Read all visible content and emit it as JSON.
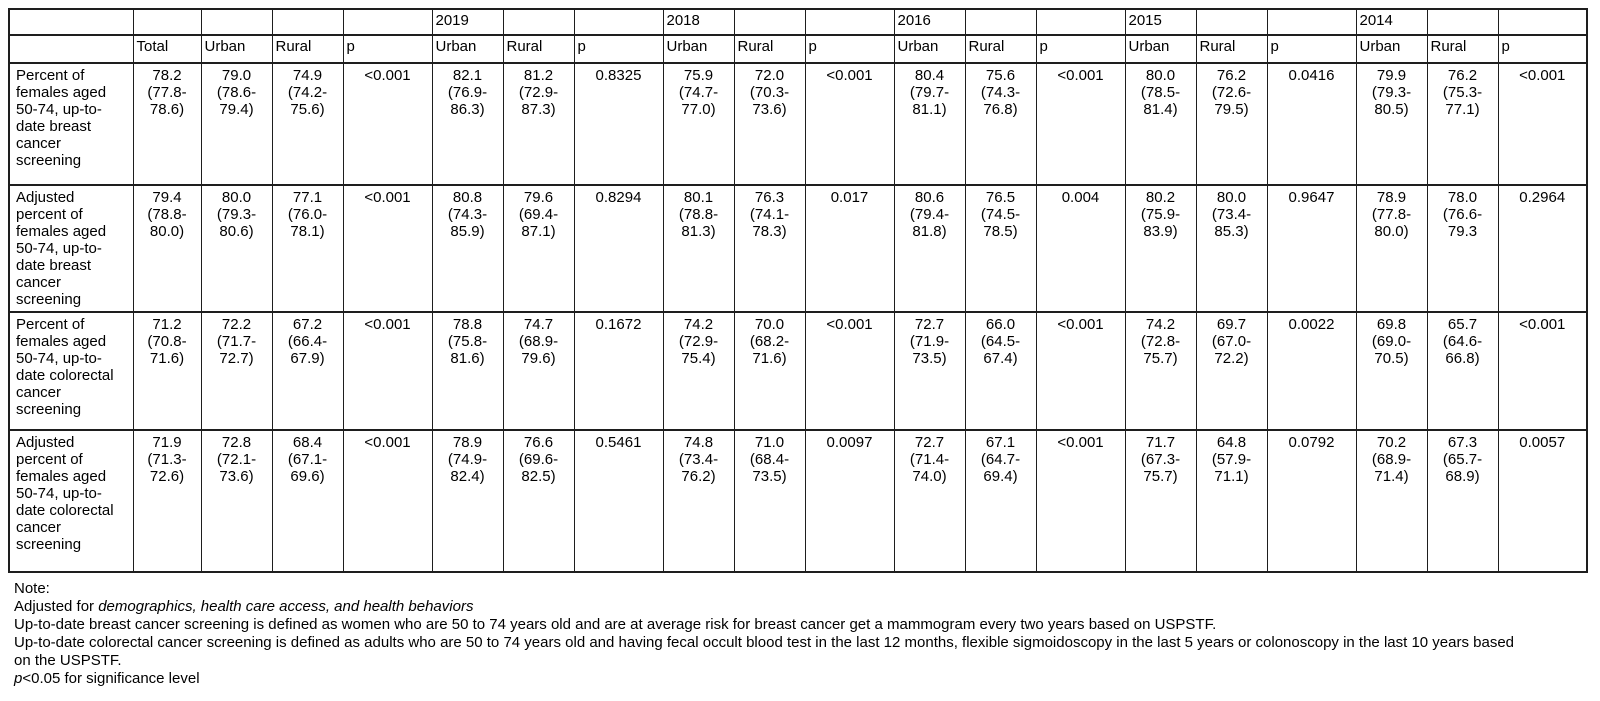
{
  "header": {
    "year_row": [
      "",
      "",
      "",
      "",
      "",
      "2019",
      "",
      "",
      "2018",
      "",
      "",
      "2016",
      "",
      "",
      "2015",
      "",
      "",
      "2014",
      "",
      ""
    ],
    "column_row": [
      "",
      "Total",
      "Urban",
      "Rural",
      "p",
      "Urban",
      "Rural",
      "p",
      "Urban",
      "Rural",
      "p",
      "Urban",
      "Rural",
      "p",
      "Urban",
      "Rural",
      "p",
      "Urban",
      "Rural",
      "p"
    ]
  },
  "rows": [
    {
      "label": "Percent of females aged 50-74, up-to-date breast cancer screening",
      "cells": [
        [
          "78.2",
          "(77.8-",
          "78.6)"
        ],
        [
          "79.0",
          "(78.6-",
          "79.4)"
        ],
        [
          "74.9",
          "(74.2-",
          "75.6)"
        ],
        [
          "<0.001"
        ],
        [
          "82.1",
          "(76.9-",
          "86.3)"
        ],
        [
          "81.2",
          "(72.9-",
          "87.3)"
        ],
        [
          "0.8325"
        ],
        [
          "75.9",
          "(74.7-",
          "77.0)"
        ],
        [
          "72.0",
          "(70.3-",
          "73.6)"
        ],
        [
          "<0.001"
        ],
        [
          "80.4",
          "(79.7-",
          "81.1)"
        ],
        [
          "75.6",
          "(74.3-",
          "76.8)"
        ],
        [
          "<0.001"
        ],
        [
          "80.0",
          "(78.5-",
          "81.4)"
        ],
        [
          "76.2",
          "(72.6-",
          "79.5)"
        ],
        [
          "0.0416"
        ],
        [
          "79.9",
          "(79.3-",
          "80.5)"
        ],
        [
          "76.2",
          "(75.3-",
          "77.1)"
        ],
        [
          "<0.001"
        ]
      ]
    },
    {
      "label": "Adjusted percent of females aged 50-74, up-to-date breast cancer screening",
      "cells": [
        [
          "79.4",
          "(78.8-",
          "80.0)"
        ],
        [
          "80.0",
          "(79.3-",
          "80.6)"
        ],
        [
          "77.1",
          "(76.0-",
          "78.1)"
        ],
        [
          "<0.001"
        ],
        [
          "80.8",
          "(74.3-",
          "85.9)"
        ],
        [
          "79.6",
          "(69.4-",
          "87.1)"
        ],
        [
          "0.8294"
        ],
        [
          "80.1",
          "(78.8-",
          "81.3)"
        ],
        [
          "76.3",
          "(74.1-",
          "78.3)"
        ],
        [
          "0.017"
        ],
        [
          "80.6",
          "(79.4-",
          "81.8)"
        ],
        [
          "76.5",
          "(74.5-",
          "78.5)"
        ],
        [
          "0.004"
        ],
        [
          "80.2",
          "(75.9-",
          "83.9)"
        ],
        [
          "80.0",
          "(73.4-",
          "85.3)"
        ],
        [
          "0.9647"
        ],
        [
          "78.9",
          "(77.8-",
          "80.0)"
        ],
        [
          "78.0",
          "(76.6-",
          "79.3"
        ],
        [
          "0.2964"
        ]
      ]
    },
    {
      "label": "Percent of females aged 50-74, up-to-date colorectal cancer screening",
      "cells": [
        [
          "71.2",
          "(70.8-",
          "71.6)"
        ],
        [
          "72.2",
          "(71.7-",
          "72.7)"
        ],
        [
          "67.2",
          "(66.4-",
          "67.9)"
        ],
        [
          "<0.001"
        ],
        [
          "78.8",
          "(75.8-",
          "81.6)"
        ],
        [
          "74.7",
          "(68.9-",
          "79.6)"
        ],
        [
          "0.1672"
        ],
        [
          "74.2",
          "(72.9-",
          "75.4)"
        ],
        [
          "70.0",
          "(68.2-",
          "71.6)"
        ],
        [
          "<0.001"
        ],
        [
          "72.7",
          "(71.9-",
          "73.5)"
        ],
        [
          "66.0",
          "(64.5-",
          "67.4)"
        ],
        [
          "<0.001"
        ],
        [
          "74.2",
          "(72.8-",
          "75.7)"
        ],
        [
          "69.7",
          "(67.0-",
          "72.2)"
        ],
        [
          "0.0022"
        ],
        [
          "69.8",
          "(69.0-",
          "70.5)"
        ],
        [
          "65.7",
          "(64.6-",
          "66.8)"
        ],
        [
          "<0.001"
        ]
      ]
    },
    {
      "label": "Adjusted percent of females aged 50-74, up-to-date colorectal cancer screening",
      "cells": [
        [
          "71.9",
          "(71.3-",
          "72.6)"
        ],
        [
          "72.8",
          "(72.1-",
          "73.6)"
        ],
        [
          "68.4",
          "(67.1-",
          "69.6)"
        ],
        [
          "<0.001"
        ],
        [
          "78.9",
          "(74.9-",
          "82.4)"
        ],
        [
          "76.6",
          "(69.6-",
          "82.5)"
        ],
        [
          "0.5461"
        ],
        [
          "74.8",
          "(73.4-",
          "76.2)"
        ],
        [
          "71.0",
          "(68.4-",
          "73.5)"
        ],
        [
          "0.0097"
        ],
        [
          "72.7",
          "(71.4-",
          "74.0)"
        ],
        [
          "67.1",
          "(64.7-",
          "69.4)"
        ],
        [
          "<0.001"
        ],
        [
          "71.7",
          "(67.3-",
          "75.7)"
        ],
        [
          "64.8",
          "(57.9-",
          "71.1)"
        ],
        [
          "0.0792"
        ],
        [
          "70.2",
          "(68.9-",
          "71.4)"
        ],
        [
          "67.3",
          "(65.7-",
          "68.9)"
        ],
        [
          "0.0057"
        ]
      ]
    }
  ],
  "notes": {
    "title": "Note:",
    "lines": [
      [
        {
          "t": "Adjusted for ",
          "i": false
        },
        {
          "t": "demographics, health care access, and health behaviors",
          "i": true
        }
      ],
      [
        {
          "t": "Up-to-date breast cancer screening is defined as women who are 50 to 74 years old and are at average risk for breast cancer get a mammogram every two years based on USPSTF.",
          "i": false
        }
      ],
      [
        {
          "t": "Up-to-date colorectal cancer screening is defined as adults who are 50 to 74 years old and having fecal occult blood test in the last 12 months, flexible sigmoidoscopy in the last 5 years or colonoscopy in the last 10 years based on the USPSTF.",
          "i": false
        }
      ],
      [
        {
          "t": "p",
          "i": true
        },
        {
          "t": "<0.05 for significance level",
          "i": false
        }
      ]
    ]
  }
}
